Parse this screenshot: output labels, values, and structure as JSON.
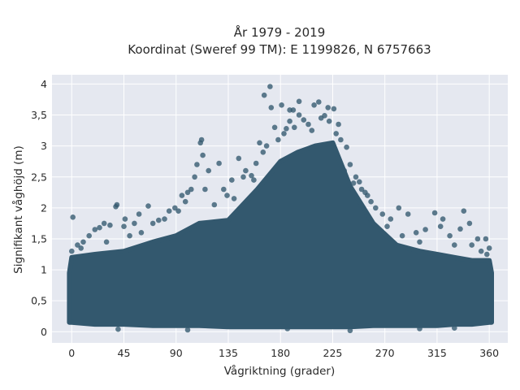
{
  "chart_data": {
    "type": "scatter",
    "title_line1": "År 1979 - 2019",
    "title_line2": "Koordinat (Sweref 99 TM): E 1199826, N 6757663",
    "xlabel": "Vågriktning (grader)",
    "ylabel": "Signifikant våghöjd (m)",
    "xlim": [
      -17,
      376
    ],
    "ylim": [
      -0.18,
      4.15
    ],
    "xticks": [
      0,
      45,
      90,
      135,
      180,
      225,
      270,
      315,
      360
    ],
    "xtick_labels": [
      "0",
      "45",
      "90",
      "135",
      "180",
      "225",
      "270",
      "315",
      "360"
    ],
    "yticks": [
      0,
      0.5,
      1,
      1.5,
      2,
      2.5,
      3,
      3.5,
      4
    ],
    "ytick_labels": [
      "0",
      "0,5",
      "1",
      "1,5",
      "2",
      "2,5",
      "3",
      "3,5",
      "4"
    ],
    "grid": true,
    "plot_background": "#e5e8f0",
    "marker_color": "#33586e",
    "envelope": {
      "x": [
        -2,
        0,
        20,
        45,
        70,
        90,
        110,
        135,
        160,
        180,
        195,
        210,
        225,
        240,
        260,
        280,
        300,
        315,
        330,
        345,
        360,
        362
      ],
      "upper": [
        0.95,
        1.2,
        1.25,
        1.3,
        1.45,
        1.55,
        1.75,
        1.8,
        2.3,
        2.75,
        2.9,
        3.0,
        3.05,
        2.35,
        1.75,
        1.4,
        1.3,
        1.25,
        1.2,
        1.15,
        1.15,
        0.95
      ],
      "lower": [
        0.15,
        0.15,
        0.12,
        0.12,
        0.1,
        0.1,
        0.1,
        0.08,
        0.08,
        0.08,
        0.08,
        0.08,
        0.08,
        0.08,
        0.1,
        0.1,
        0.1,
        0.1,
        0.12,
        0.12,
        0.15,
        0.15
      ]
    },
    "points": [
      {
        "x": 171,
        "y": 3.96
      },
      {
        "x": 166,
        "y": 3.82
      },
      {
        "x": 188,
        "y": 3.58
      },
      {
        "x": 196,
        "y": 3.72
      },
      {
        "x": 213,
        "y": 3.71
      },
      {
        "x": 221,
        "y": 3.62
      },
      {
        "x": 226,
        "y": 3.6
      },
      {
        "x": 181,
        "y": 3.66
      },
      {
        "x": 191,
        "y": 3.58
      },
      {
        "x": 172,
        "y": 3.62
      },
      {
        "x": 209,
        "y": 3.66
      },
      {
        "x": 218,
        "y": 3.49
      },
      {
        "x": 230,
        "y": 3.35
      },
      {
        "x": 175,
        "y": 3.3
      },
      {
        "x": 185,
        "y": 3.28
      },
      {
        "x": 162,
        "y": 3.05
      },
      {
        "x": 168,
        "y": 3.0
      },
      {
        "x": 200,
        "y": 3.42
      },
      {
        "x": 232,
        "y": 3.1
      },
      {
        "x": 237,
        "y": 2.98
      },
      {
        "x": 240,
        "y": 2.7
      },
      {
        "x": 245,
        "y": 2.5
      },
      {
        "x": 250,
        "y": 2.3
      },
      {
        "x": 255,
        "y": 2.2
      },
      {
        "x": 248,
        "y": 2.42
      },
      {
        "x": 253,
        "y": 2.25
      },
      {
        "x": 262,
        "y": 2.0
      },
      {
        "x": 268,
        "y": 1.9
      },
      {
        "x": 275,
        "y": 1.82
      },
      {
        "x": 282,
        "y": 2.0
      },
      {
        "x": 290,
        "y": 1.9
      },
      {
        "x": 297,
        "y": 1.6
      },
      {
        "x": 305,
        "y": 1.65
      },
      {
        "x": 313,
        "y": 1.92
      },
      {
        "x": 318,
        "y": 1.7
      },
      {
        "x": 320,
        "y": 1.82
      },
      {
        "x": 326,
        "y": 1.55
      },
      {
        "x": 335,
        "y": 1.66
      },
      {
        "x": 338,
        "y": 1.95
      },
      {
        "x": 343,
        "y": 1.75
      },
      {
        "x": 350,
        "y": 1.5
      },
      {
        "x": 357,
        "y": 1.5
      },
      {
        "x": 360,
        "y": 1.35
      },
      {
        "x": 144,
        "y": 2.8
      },
      {
        "x": 150,
        "y": 2.6
      },
      {
        "x": 155,
        "y": 2.52
      },
      {
        "x": 148,
        "y": 2.5
      },
      {
        "x": 159,
        "y": 2.72
      },
      {
        "x": 138,
        "y": 2.45
      },
      {
        "x": 131,
        "y": 2.3
      },
      {
        "x": 127,
        "y": 2.72
      },
      {
        "x": 140,
        "y": 2.15
      },
      {
        "x": 118,
        "y": 2.6
      },
      {
        "x": 115,
        "y": 2.3
      },
      {
        "x": 112,
        "y": 3.1
      },
      {
        "x": 111,
        "y": 3.05
      },
      {
        "x": 113,
        "y": 2.85
      },
      {
        "x": 108,
        "y": 2.7
      },
      {
        "x": 106,
        "y": 2.5
      },
      {
        "x": 103,
        "y": 2.3
      },
      {
        "x": 100,
        "y": 2.25
      },
      {
        "x": 95,
        "y": 2.2
      },
      {
        "x": 89,
        "y": 2.0
      },
      {
        "x": 84,
        "y": 1.95
      },
      {
        "x": 80,
        "y": 1.82
      },
      {
        "x": 75,
        "y": 1.8
      },
      {
        "x": 70,
        "y": 1.75
      },
      {
        "x": 66,
        "y": 2.03
      },
      {
        "x": 58,
        "y": 1.9
      },
      {
        "x": 54,
        "y": 1.75
      },
      {
        "x": 46,
        "y": 1.82
      },
      {
        "x": 45,
        "y": 1.7
      },
      {
        "x": 39,
        "y": 2.05
      },
      {
        "x": 38,
        "y": 2.02
      },
      {
        "x": 33,
        "y": 1.72
      },
      {
        "x": 28,
        "y": 1.75
      },
      {
        "x": 24,
        "y": 1.68
      },
      {
        "x": 20,
        "y": 1.65
      },
      {
        "x": 15,
        "y": 1.55
      },
      {
        "x": 10,
        "y": 1.45
      },
      {
        "x": 5,
        "y": 1.4
      },
      {
        "x": 1,
        "y": 1.85
      },
      {
        "x": 0,
        "y": 1.3
      },
      {
        "x": 3,
        "y": 1.2
      },
      {
        "x": 8,
        "y": 1.35
      },
      {
        "x": 358,
        "y": 1.25
      },
      {
        "x": 353,
        "y": 1.3
      },
      {
        "x": 204,
        "y": 3.35
      },
      {
        "x": 215,
        "y": 3.45
      },
      {
        "x": 222,
        "y": 3.4
      },
      {
        "x": 178,
        "y": 3.1
      },
      {
        "x": 183,
        "y": 3.2
      },
      {
        "x": 192,
        "y": 3.3
      },
      {
        "x": 165,
        "y": 2.9
      },
      {
        "x": 157,
        "y": 2.45
      },
      {
        "x": 235,
        "y": 2.6
      },
      {
        "x": 243,
        "y": 2.4
      },
      {
        "x": 258,
        "y": 2.1
      },
      {
        "x": 272,
        "y": 1.7
      },
      {
        "x": 285,
        "y": 1.55
      },
      {
        "x": 300,
        "y": 1.45
      },
      {
        "x": 330,
        "y": 1.4
      },
      {
        "x": 345,
        "y": 1.4
      },
      {
        "x": 123,
        "y": 2.05
      },
      {
        "x": 134,
        "y": 2.2
      },
      {
        "x": 60,
        "y": 1.6
      },
      {
        "x": 50,
        "y": 1.55
      },
      {
        "x": 30,
        "y": 1.45
      },
      {
        "x": 92,
        "y": 1.95
      },
      {
        "x": 98,
        "y": 2.1
      },
      {
        "x": 196,
        "y": 3.5
      },
      {
        "x": 188,
        "y": 3.4
      },
      {
        "x": 207,
        "y": 3.25
      },
      {
        "x": 228,
        "y": 3.2
      },
      {
        "x": 186,
        "y": 0.05
      },
      {
        "x": 240,
        "y": 0.02
      },
      {
        "x": 100,
        "y": 0.03
      },
      {
        "x": 300,
        "y": 0.05
      },
      {
        "x": 40,
        "y": 0.04
      },
      {
        "x": 330,
        "y": 0.06
      }
    ]
  }
}
